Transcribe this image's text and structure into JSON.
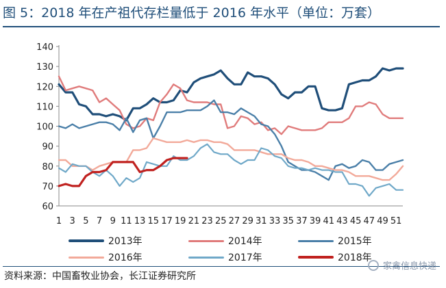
{
  "title": "图 5：2018 年在产祖代存栏量低于 2016 年水平（单位：万套）",
  "source": "资料来源：中国畜牧业协会，长江证券研究所",
  "watermark": "家禽信息快递",
  "chart_data": {
    "type": "line",
    "title": "图 5：2018 年在产祖代存栏量低于 2016 年水平（单位：万套）",
    "xlabel": "",
    "ylabel": "",
    "ylim": [
      60,
      140
    ],
    "yticks": [
      60,
      70,
      80,
      90,
      100,
      110,
      120,
      130,
      140
    ],
    "xlim": [
      1,
      52
    ],
    "xticks": [
      "1",
      "3",
      "5",
      "7",
      "9",
      "11",
      "13",
      "15",
      "17",
      "19",
      "21",
      "23",
      "25",
      "27",
      "29",
      "31",
      "33",
      "35",
      "37",
      "39",
      "41",
      "43",
      "45",
      "47",
      "49",
      "51"
    ],
    "grid": false,
    "legend": "bottom",
    "series": [
      {
        "name": "2013年",
        "color": "#1f4e79",
        "width": 3.2,
        "x": [
          1,
          2,
          3,
          4,
          5,
          6,
          7,
          8,
          9,
          10,
          11,
          12,
          13,
          14,
          15,
          16,
          17,
          18,
          19,
          20,
          21,
          22,
          23,
          24,
          25,
          26,
          27,
          28,
          29,
          30,
          31,
          32,
          33,
          34,
          35,
          36,
          37,
          38,
          39,
          40,
          41,
          42,
          43,
          44,
          45,
          46,
          47,
          48,
          49,
          50,
          51,
          52
        ],
        "values": [
          121,
          117,
          117,
          111,
          110,
          106,
          106,
          105,
          106,
          105,
          103,
          109,
          109,
          111,
          114,
          112,
          112,
          113,
          118,
          117,
          122,
          124,
          125,
          126,
          128,
          124,
          121,
          121,
          127,
          125,
          125,
          124,
          121,
          116,
          114,
          117,
          117,
          120,
          120,
          109,
          108,
          108,
          109,
          121,
          122,
          123,
          123,
          125,
          129,
          128,
          129,
          129
        ]
      },
      {
        "name": "2014年",
        "color": "#e07b7b",
        "width": 2.4,
        "x": [
          1,
          2,
          3,
          4,
          5,
          6,
          7,
          8,
          9,
          10,
          11,
          12,
          13,
          14,
          15,
          16,
          17,
          18,
          19,
          20,
          21,
          22,
          23,
          24,
          25,
          26,
          27,
          28,
          29,
          30,
          31,
          32,
          33,
          34,
          35,
          36,
          37,
          38,
          39,
          40,
          41,
          42,
          43,
          44,
          45,
          46,
          47,
          48,
          49,
          50,
          51,
          52
        ],
        "values": [
          125,
          118,
          119,
          120,
          119,
          118,
          112,
          114,
          111,
          108,
          101,
          99,
          100,
          104,
          103,
          112,
          116,
          121,
          119,
          113,
          112,
          112,
          112,
          111,
          111,
          99,
          100,
          105,
          104,
          101,
          102,
          98,
          99,
          96,
          100,
          99,
          98,
          98,
          98,
          99,
          102,
          102,
          102,
          104,
          110,
          110,
          112,
          111,
          106,
          104,
          104,
          104
        ]
      },
      {
        "name": "2015年",
        "color": "#4a7fa8",
        "width": 2.4,
        "x": [
          1,
          2,
          3,
          4,
          5,
          6,
          7,
          8,
          9,
          10,
          11,
          12,
          13,
          14,
          15,
          16,
          17,
          18,
          19,
          20,
          21,
          22,
          23,
          24,
          25,
          26,
          27,
          28,
          29,
          30,
          31,
          32,
          33,
          34,
          35,
          36,
          37,
          38,
          39,
          40,
          41,
          42,
          43,
          44,
          45,
          46,
          47,
          48,
          49,
          50,
          51,
          52
        ],
        "values": [
          100,
          99,
          101,
          99,
          100,
          101,
          102,
          102,
          101,
          98,
          104,
          97,
          103,
          104,
          94,
          100,
          107,
          107,
          107,
          108,
          108,
          108,
          110,
          113,
          107,
          107,
          106,
          109,
          107,
          105,
          101,
          100,
          96,
          90,
          82,
          80,
          78,
          78,
          77,
          75,
          73,
          80,
          81,
          79,
          80,
          83,
          82,
          78,
          78,
          81,
          82,
          83
        ]
      },
      {
        "name": "2016年",
        "color": "#f2a999",
        "width": 2.4,
        "x": [
          1,
          2,
          3,
          4,
          5,
          6,
          7,
          8,
          9,
          10,
          11,
          12,
          13,
          14,
          15,
          16,
          17,
          18,
          19,
          20,
          21,
          22,
          23,
          24,
          25,
          26,
          27,
          28,
          29,
          30,
          31,
          32,
          33,
          34,
          35,
          36,
          37,
          38,
          39,
          40,
          41,
          42,
          43,
          44,
          45,
          46,
          47,
          48,
          49,
          50,
          51,
          52
        ],
        "values": [
          83,
          83,
          80,
          80,
          80,
          78,
          80,
          81,
          82,
          82,
          82,
          88,
          88,
          89,
          94,
          93,
          92,
          92,
          92,
          93,
          92,
          93,
          93,
          92,
          92,
          91,
          88,
          88,
          88,
          88,
          87,
          86,
          86,
          86,
          84,
          83,
          83,
          82,
          80,
          80,
          79,
          78,
          78,
          77,
          75,
          75,
          75,
          74,
          73,
          73,
          76,
          80
        ]
      },
      {
        "name": "2017年",
        "color": "#6fa8c8",
        "width": 2.2,
        "x": [
          1,
          2,
          3,
          4,
          5,
          6,
          7,
          8,
          9,
          10,
          11,
          12,
          13,
          14,
          15,
          16,
          17,
          18,
          19,
          20,
          21,
          22,
          23,
          24,
          25,
          26,
          27,
          28,
          29,
          30,
          31,
          32,
          33,
          34,
          35,
          36,
          37,
          38,
          39,
          40,
          41,
          42,
          43,
          44,
          45,
          46,
          47,
          48,
          49,
          50,
          51,
          52
        ],
        "values": [
          79,
          77,
          81,
          80,
          80,
          77,
          75,
          78,
          75,
          70,
          74,
          72,
          74,
          82,
          81,
          80,
          80,
          85,
          83,
          83,
          85,
          89,
          91,
          87,
          86,
          86,
          83,
          81,
          83,
          83,
          89,
          88,
          85,
          84,
          80,
          79,
          79,
          78,
          79,
          78,
          78,
          77,
          77,
          71,
          71,
          70,
          65,
          69,
          70,
          71,
          68,
          68
        ]
      },
      {
        "name": "2018年",
        "color": "#c0211f",
        "width": 3.2,
        "x": [
          1,
          2,
          3,
          4,
          5,
          6,
          7,
          8,
          9,
          10,
          11,
          12,
          13,
          14,
          15,
          16,
          17,
          18,
          19,
          20
        ],
        "values": [
          70,
          71,
          70,
          70,
          75,
          77,
          77,
          78,
          82,
          82,
          82,
          82,
          77,
          78,
          78,
          80,
          83,
          84,
          84,
          84
        ]
      }
    ]
  }
}
